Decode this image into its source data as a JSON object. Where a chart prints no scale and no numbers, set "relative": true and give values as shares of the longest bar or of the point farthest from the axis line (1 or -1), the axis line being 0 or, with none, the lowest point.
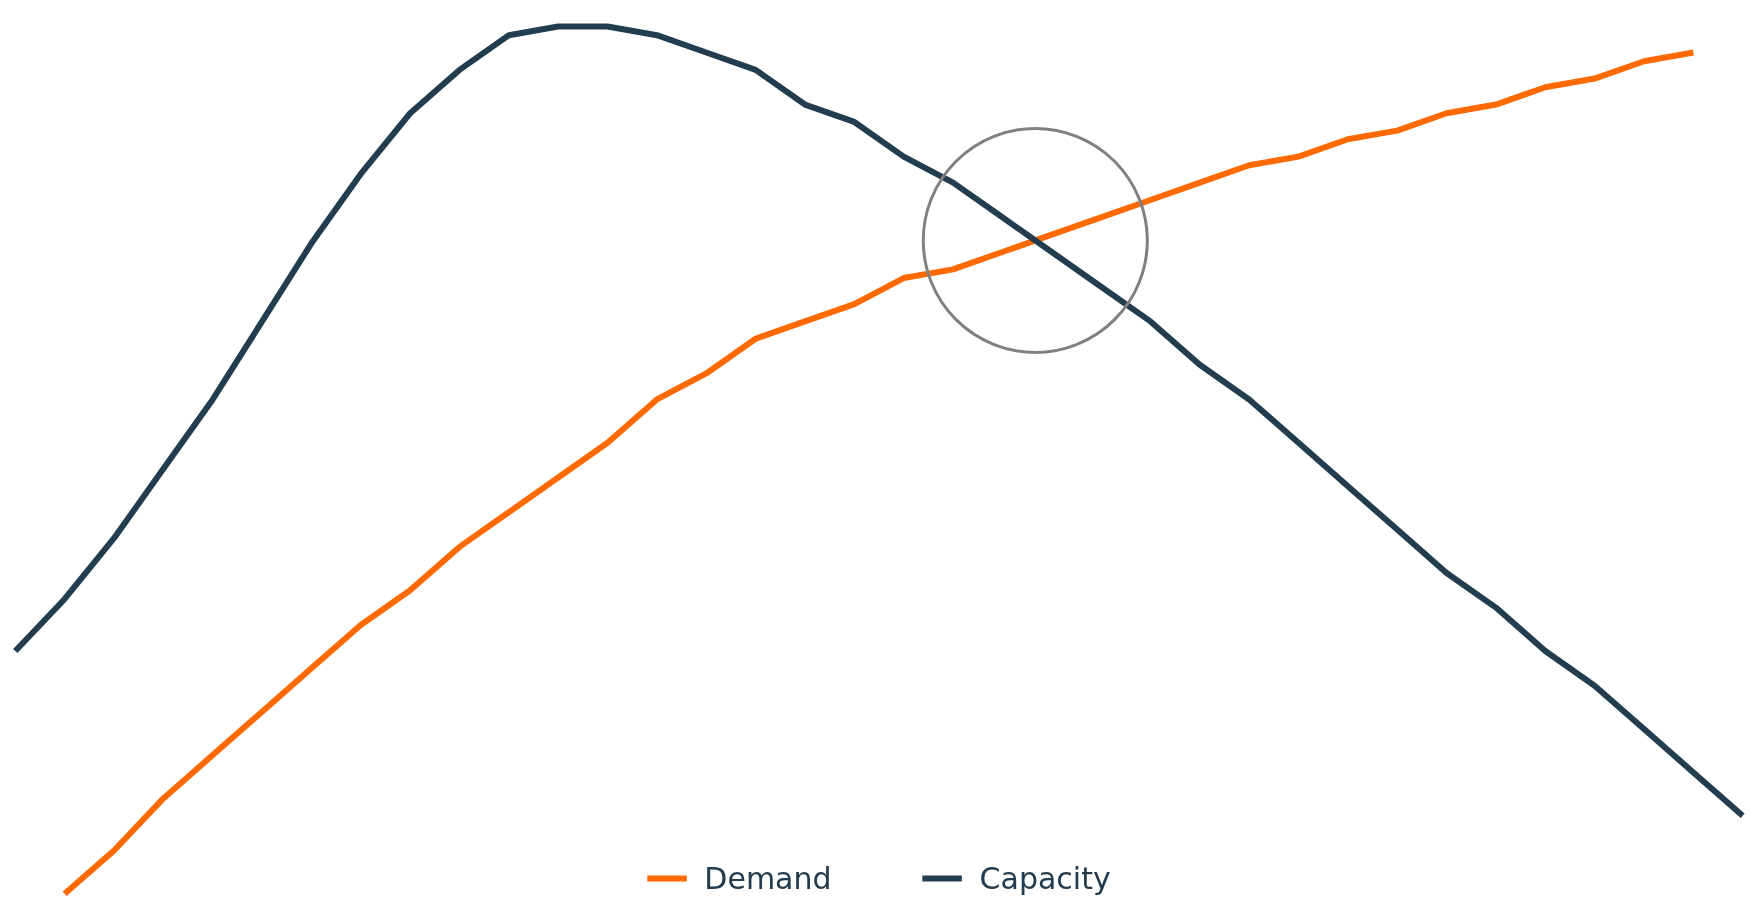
{
  "chart_data": {
    "type": "line",
    "relative": true,
    "legend": "bottom",
    "marker": "none",
    "line_style": "solid",
    "grid": false,
    "categories": [
      null,
      null,
      null,
      null,
      null,
      null,
      null,
      null,
      null,
      null,
      null,
      null,
      null,
      null,
      null,
      null,
      null,
      null,
      null,
      null,
      null,
      null,
      null,
      null,
      null,
      null,
      null,
      null,
      null,
      null,
      null,
      null,
      null,
      null,
      null,
      null
    ],
    "series": [
      {
        "name": "Demand",
        "color": "#ff6a00",
        "values": [
          null,
          0.0,
          0.05,
          0.11,
          0.16,
          0.21,
          0.26,
          0.31,
          0.35,
          0.4,
          0.44,
          0.48,
          0.52,
          0.57,
          0.6,
          0.64,
          0.66,
          0.68,
          0.71,
          0.72,
          0.74,
          0.76,
          0.78,
          0.8,
          0.82,
          0.84,
          0.85,
          0.87,
          0.88,
          0.9,
          0.91,
          0.93,
          0.94,
          0.96,
          0.97,
          null
        ]
      },
      {
        "name": "Capacity",
        "color": "#233d50",
        "values": [
          0.28,
          0.34,
          0.41,
          0.49,
          0.57,
          0.66,
          0.75,
          0.83,
          0.9,
          0.95,
          0.99,
          1.0,
          1.0,
          0.99,
          0.97,
          0.95,
          0.91,
          0.89,
          0.85,
          0.82,
          0.78,
          0.74,
          0.7,
          0.66,
          0.61,
          0.57,
          0.52,
          0.47,
          0.42,
          0.37,
          0.33,
          0.28,
          0.24,
          0.19,
          0.14,
          0.09
        ]
      }
    ]
  }
}
